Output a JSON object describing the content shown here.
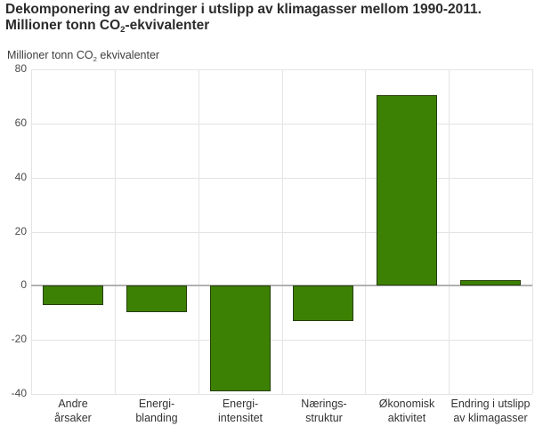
{
  "page": {
    "title_line1": "Dekomponering av endringer i utslipp av klimagasser mellom 1990-2011.",
    "title_line2_prefix": "Millioner tonn CO",
    "title_line2_sub": "2",
    "title_line2_suffix": "-ekvivalenter"
  },
  "axis_unit": {
    "prefix": "Millioner tonn CO",
    "sub": "2",
    "suffix": " ekvivalenter"
  },
  "chart_data": {
    "type": "bar",
    "title": "Dekomponering av endringer i utslipp av klimagasser mellom 1990-2011. Millioner tonn CO2-ekvivalenter",
    "ylabel": "Millioner tonn CO2 ekvivalenter",
    "xlabel": "",
    "categories": [
      "Andre\nårsaker",
      "Energi-\nblanding",
      "Energi-\nintensitet",
      "Nærings-\nstruktur",
      "Økonomisk\naktivitet",
      "Endring i utslipp\nav klimagasser"
    ],
    "values": [
      -7.3,
      -10,
      -39,
      -13.2,
      70.5,
      2
    ],
    "ylim": [
      -40,
      80
    ],
    "yticks": [
      80,
      60,
      40,
      20,
      0,
      -20,
      -40
    ],
    "grid": true,
    "legend": "none",
    "bar_color": "#3d8104",
    "gridline_color": "#e4e4e4",
    "zero_line_color": "#b1b1b1",
    "tick_label_color": "#4a4a4a",
    "title_color": "#2b2b2b"
  }
}
